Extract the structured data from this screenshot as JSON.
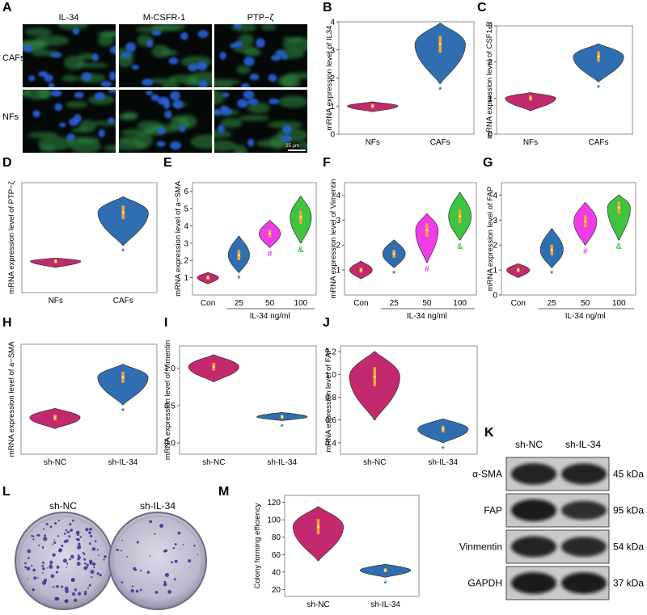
{
  "figure": {
    "panel_letters": [
      "A",
      "B",
      "C",
      "D",
      "E",
      "F",
      "G",
      "H",
      "I",
      "J",
      "K",
      "L",
      "M"
    ],
    "scale_bar_label": "25 μm",
    "colors": {
      "pink": "#c4286f",
      "blue": "#2f6eb0",
      "magenta": "#f03ce8",
      "green": "#3ec43e",
      "fluor_blue": "#2a5ed8",
      "fluor_green": "#2f8c44",
      "core": "#f2a33a",
      "center": "#ffef8a"
    }
  },
  "panel_a": {
    "columns": [
      "IL-34",
      "M-CSFR-1",
      "PTP−ζ"
    ],
    "rows": [
      "CAFs",
      "NFs"
    ]
  },
  "panel_k": {
    "columns": [
      "sh-NC",
      "sh-IL-34"
    ],
    "bands": [
      {
        "name": "α-SMA",
        "kda": "45 kDa",
        "intensity": [
          0.85,
          0.8
        ]
      },
      {
        "name": "FAP",
        "kda": "95 kDa",
        "intensity": [
          0.92,
          0.55
        ]
      },
      {
        "name": "Vinmentin",
        "kda": "54 kDa",
        "intensity": [
          0.78,
          0.65
        ]
      },
      {
        "name": "GAPDH",
        "kda": "37 kDa",
        "intensity": [
          0.88,
          0.86
        ]
      }
    ]
  },
  "panel_l": {
    "labels": [
      "sh-NC",
      "sh-IL-34"
    ],
    "colony_density": [
      1.0,
      0.3
    ]
  },
  "chart_data": [
    {
      "panel": "B",
      "type": "violin",
      "ylabel": "mRNA expression level of IL34",
      "categories": [
        "NFs",
        "CAFs"
      ],
      "series": [
        {
          "median": 1.0,
          "min": 0.8,
          "max": 1.15,
          "color": "pink"
        },
        {
          "median": 3.2,
          "min": 1.8,
          "max": 3.95,
          "color": "blue"
        }
      ],
      "annotations": [
        "",
        "*"
      ],
      "ylim": [
        0,
        4
      ],
      "yticks": [
        0,
        1,
        2,
        3,
        4
      ]
    },
    {
      "panel": "C",
      "type": "violin",
      "ylabel": "mRNA expression level of CSF1-R",
      "categories": [
        "NFs",
        "CAFs"
      ],
      "series": [
        {
          "median": 1.0,
          "min": 0.65,
          "max": 1.15,
          "color": "pink"
        },
        {
          "median": 2.15,
          "min": 1.45,
          "max": 2.5,
          "color": "blue"
        }
      ],
      "annotations": [
        "",
        "*"
      ],
      "ylim": [
        0,
        3
      ],
      "yticks": [
        0,
        1,
        2,
        3
      ]
    },
    {
      "panel": "D",
      "type": "violin",
      "ylabel": "mRNA expression level of PTP−ζ",
      "categories": [
        "NFs",
        "CAFs"
      ],
      "series": [
        {
          "median": 1.0,
          "min": 0.8,
          "max": 1.1,
          "color": "pink"
        },
        {
          "median": 2.55,
          "min": 1.5,
          "max": 3.05,
          "color": "blue"
        }
      ],
      "annotations": [
        "",
        "*"
      ],
      "ylim": [
        0,
        3.5
      ],
      "yticks": []
    },
    {
      "panel": "E",
      "type": "violin",
      "ylabel": "mRNA expression level of a−SMA",
      "xlabel": "IL-34 ng/ml",
      "categories": [
        "Con",
        "25",
        "50",
        "100"
      ],
      "series": [
        {
          "median": 1.0,
          "min": 0.65,
          "max": 1.3,
          "color": "pink"
        },
        {
          "median": 2.3,
          "min": 1.3,
          "max": 3.4,
          "color": "blue"
        },
        {
          "median": 3.55,
          "min": 2.75,
          "max": 4.3,
          "color": "magenta"
        },
        {
          "median": 4.5,
          "min": 3.0,
          "max": 5.7,
          "color": "green"
        }
      ],
      "annotations": [
        "",
        "*",
        "#",
        "&"
      ],
      "ylim": [
        0,
        6.5
      ],
      "yticks": [
        1,
        2,
        3,
        4,
        5,
        6
      ]
    },
    {
      "panel": "F",
      "type": "violin",
      "ylabel": "mRNA expression level of Vimentin",
      "xlabel": "IL-34 ng/ml",
      "categories": [
        "Con",
        "25",
        "50",
        "100"
      ],
      "series": [
        {
          "median": 1.0,
          "min": 0.65,
          "max": 1.35,
          "color": "pink"
        },
        {
          "median": 1.65,
          "min": 1.1,
          "max": 2.2,
          "color": "blue"
        },
        {
          "median": 2.6,
          "min": 1.3,
          "max": 3.25,
          "color": "magenta"
        },
        {
          "median": 3.15,
          "min": 2.2,
          "max": 4.1,
          "color": "green"
        }
      ],
      "annotations": [
        "",
        "*",
        "#",
        "&"
      ],
      "ylim": [
        0,
        4.5
      ],
      "yticks": [
        1,
        2,
        3,
        4
      ]
    },
    {
      "panel": "G",
      "type": "violin",
      "ylabel": "mRNA expression level of FAP",
      "xlabel": "IL-34 ng/ml",
      "categories": [
        "Con",
        "25",
        "50",
        "100"
      ],
      "series": [
        {
          "median": 1.0,
          "min": 0.7,
          "max": 1.25,
          "color": "pink"
        },
        {
          "median": 1.8,
          "min": 1.1,
          "max": 2.65,
          "color": "blue"
        },
        {
          "median": 2.95,
          "min": 2.0,
          "max": 3.7,
          "color": "magenta"
        },
        {
          "median": 3.5,
          "min": 2.2,
          "max": 4.0,
          "color": "green"
        }
      ],
      "annotations": [
        "",
        "*",
        "#",
        "&"
      ],
      "ylim": [
        0,
        4.5
      ],
      "yticks": [
        0,
        1,
        2,
        3,
        4
      ]
    },
    {
      "panel": "H",
      "type": "violin",
      "ylabel": "mRNA expression level of a−SMA",
      "categories": [
        "sh-NC",
        "sh-IL-34"
      ],
      "series": [
        {
          "median": 1.0,
          "min": 0.7,
          "max": 1.25,
          "color": "pink"
        },
        {
          "median": 2.1,
          "min": 1.35,
          "max": 2.45,
          "color": "blue"
        }
      ],
      "annotations": [
        "",
        "*"
      ],
      "ylim": [
        0,
        3
      ],
      "yticks": []
    },
    {
      "panel": "I",
      "type": "violin",
      "ylabel": "mRNA expression level of Vimentin",
      "categories": [
        "sh-NC",
        "sh-IL-34"
      ],
      "series": [
        {
          "median": 1.02,
          "min": 0.82,
          "max": 1.18,
          "color": "pink"
        },
        {
          "median": 0.35,
          "min": 0.3,
          "max": 0.41,
          "color": "blue"
        }
      ],
      "annotations": [
        "",
        "*"
      ],
      "ylim": [
        -0.15,
        1.3
      ],
      "yticks": [
        0.0,
        0.5,
        1.0
      ]
    },
    {
      "panel": "J",
      "type": "violin",
      "ylabel": "mRNA expression level of FAP",
      "categories": [
        "sh-NC",
        "sh-IL-34"
      ],
      "series": [
        {
          "median": 0.98,
          "min": 0.6,
          "max": 1.2,
          "color": "pink"
        },
        {
          "median": 0.52,
          "min": 0.4,
          "max": 0.61,
          "color": "blue"
        }
      ],
      "annotations": [
        "",
        "*"
      ],
      "ylim": [
        0.3,
        1.25
      ],
      "yticks": [
        0.4,
        0.6,
        0.8,
        1.0,
        1.2
      ]
    },
    {
      "panel": "M",
      "type": "violin",
      "ylabel": "Colony forming efficiency",
      "categories": [
        "sh-NC",
        "sh-IL-34"
      ],
      "series": [
        {
          "median": 92,
          "min": 53,
          "max": 115,
          "color": "pink"
        },
        {
          "median": 42,
          "min": 34,
          "max": 49,
          "color": "blue"
        }
      ],
      "annotations": [
        "",
        "*"
      ],
      "ylim": [
        12,
        128
      ],
      "yticks": [
        20,
        40,
        60,
        80,
        100,
        120
      ]
    }
  ]
}
